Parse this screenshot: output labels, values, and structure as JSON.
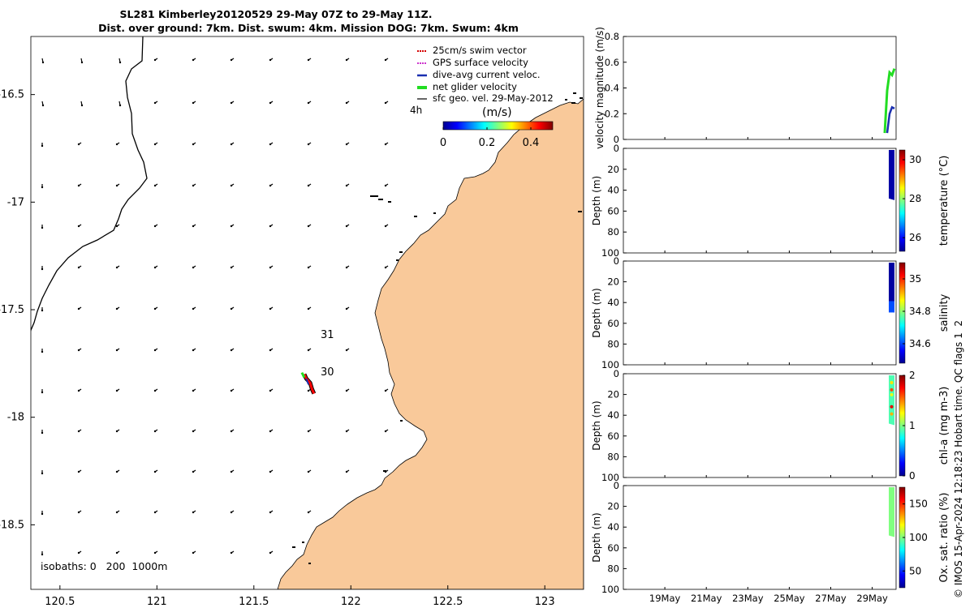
{
  "title": {
    "line1": "SL281 Kimberley20120529 29-May 07Z to 29-May 11Z.",
    "line2": "Dist. over ground: 7km. Dist. swum: 4km. Mission DOG: 7km. Swum: 4km"
  },
  "colors": {
    "land": "#F9C99A",
    "swim_vector": "#d40000",
    "gps_velocity": "#cc33cc",
    "current": "#1a2fb0",
    "net_velocity": "#22dd22",
    "arrows": "#000000",
    "track": "#ff0000"
  },
  "chart_data": [
    {
      "type": "map",
      "title": "SL281 Kimberley20120529 29-May 07Z to 29-May 11Z.",
      "xlim": [
        120.35,
        123.2
      ],
      "ylim": [
        -18.8,
        -16.23
      ],
      "xticks": [
        "120.5",
        "121",
        "121.5",
        "122",
        "122.5",
        "123"
      ],
      "yticks": [
        "-16.5",
        "-17",
        "-17.5",
        "-18",
        "-18.5"
      ],
      "legend": {
        "placement": "top-right",
        "entries": [
          "25cm/s swim vector",
          "GPS surface velocity",
          "dive-avg current veloc.",
          "net glider velocity",
          "sfc geo. vel. 29-May-2012"
        ]
      },
      "time_label": "4h",
      "colorbar": {
        "label": "(m/s)",
        "ticks": [
          "0",
          "0.2",
          "0.4"
        ],
        "range": [
          0,
          0.5
        ]
      },
      "isobaths_label": "isobaths: 0   200  1000m",
      "annotations": [
        {
          "text": "31",
          "lon": 121.87,
          "lat": -17.54
        },
        {
          "text": "30",
          "lon": 121.87,
          "lat": -17.72
        }
      ],
      "glider_track": {
        "lon": [
          121.76,
          121.77,
          121.79,
          121.8,
          121.81
        ],
        "lat": [
          -17.8,
          -17.82,
          -17.84,
          -17.87,
          -17.89
        ]
      }
    },
    {
      "type": "line",
      "ylabel": "velocity magnitude (m/s)",
      "ylim": [
        0,
        0.8
      ],
      "yticks": [
        "0",
        "0.2",
        "0.4",
        "0.6",
        "0.8"
      ],
      "series": [
        {
          "values_x": [
            29.9,
            29.95,
            30.0,
            30.05,
            30.1
          ],
          "values_y": [
            0.05,
            0.38,
            0.52,
            0.5,
            0.55
          ],
          "color": "#22dd22"
        },
        {
          "values_x": [
            29.95,
            30.0,
            30.05,
            30.1
          ],
          "values_y": [
            0.05,
            0.2,
            0.25,
            0.24
          ],
          "color": "#1a2fb0"
        }
      ]
    },
    {
      "type": "heatmap",
      "ylabel": "Depth (m)",
      "colorbar_label": "temperature (°C)",
      "colorbar_ticks": [
        "26",
        "28",
        "30"
      ],
      "colorbar_range": [
        25.3,
        30.5
      ],
      "ylim": [
        100,
        0
      ],
      "yticks": [
        "0",
        "20",
        "40",
        "60",
        "80",
        "100"
      ],
      "data_depth_max": 48
    },
    {
      "type": "heatmap",
      "ylabel": "Depth (m)",
      "colorbar_label": "salinity",
      "colorbar_ticks": [
        "34.6",
        "34.8",
        "35"
      ],
      "colorbar_range": [
        34.48,
        35.1
      ],
      "ylim": [
        100,
        0
      ],
      "yticks": [
        "0",
        "20",
        "40",
        "60",
        "80",
        "100"
      ],
      "data_depth_max": 48
    },
    {
      "type": "heatmap",
      "ylabel": "Depth (m)",
      "colorbar_label": "chl-a (mg m-3)",
      "colorbar_ticks": [
        "0",
        "1",
        "2"
      ],
      "colorbar_range": [
        0,
        2
      ],
      "ylim": [
        100,
        0
      ],
      "yticks": [
        "0",
        "20",
        "40",
        "60",
        "80",
        "100"
      ],
      "data_depth_max": 48
    },
    {
      "type": "heatmap",
      "ylabel": "Depth (m)",
      "colorbar_label": "Ox. sat. ratio (%)",
      "colorbar_ticks": [
        "50",
        "100",
        "150"
      ],
      "colorbar_range": [
        25,
        175
      ],
      "ylim": [
        100,
        0
      ],
      "yticks": [
        "0",
        "20",
        "40",
        "60",
        "80",
        "100"
      ],
      "xticks": [
        "19May",
        "21May",
        "23May",
        "25May",
        "27May",
        "29May"
      ],
      "data_depth_max": 48
    }
  ],
  "credit": "© IMOS 15-Apr-2024 12:18:23 Hobart time. QC flags 1  2"
}
